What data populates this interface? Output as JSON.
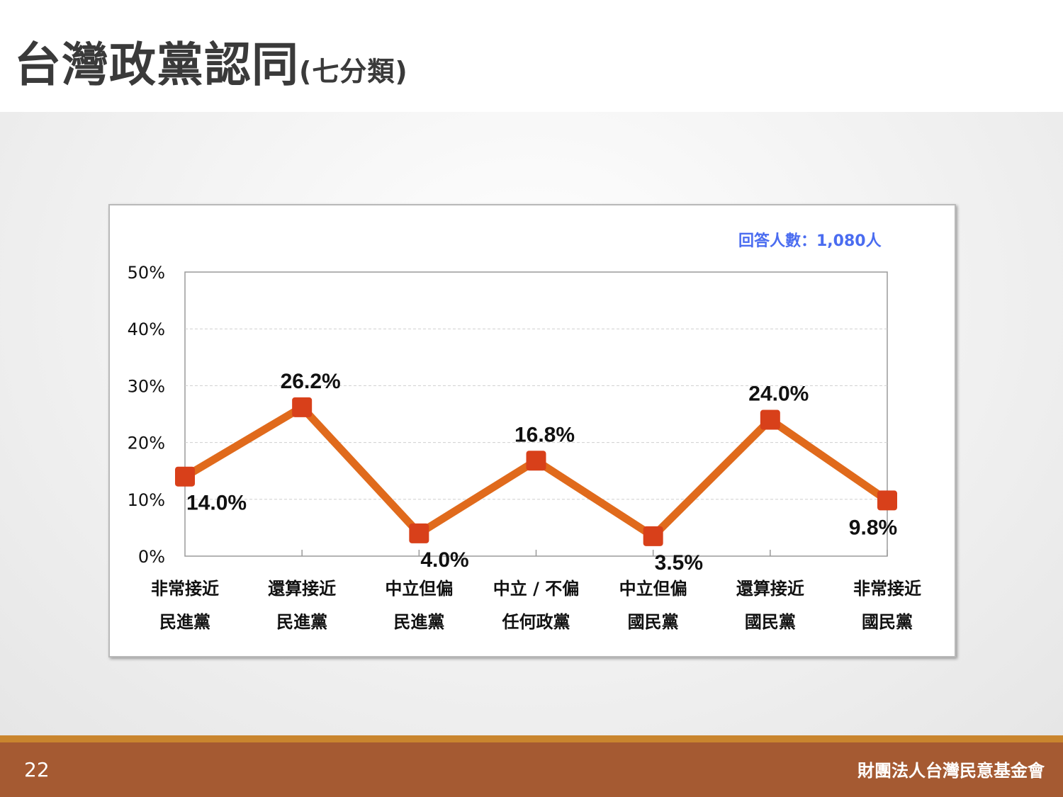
{
  "slide": {
    "title_main": "台灣政黨認同",
    "title_sub": "(七分類)",
    "page_number": "22",
    "organization": "財團法人台灣民意基金會",
    "respondents": "回答人數：1,080人"
  },
  "colors": {
    "line": "#e06a1c",
    "marker": "#d8401a",
    "footer": "#a55a32",
    "footer_line": "#c9852e",
    "note": "#4a6cf0"
  },
  "chart_data": {
    "type": "line",
    "categories": [
      [
        "非常接近",
        "民進黨"
      ],
      [
        "還算接近",
        "民進黨"
      ],
      [
        "中立但偏",
        "民進黨"
      ],
      [
        "中立 / 不偏",
        "任何政黨"
      ],
      [
        "中立但偏",
        "國民黨"
      ],
      [
        "還算接近",
        "國民黨"
      ],
      [
        "非常接近",
        "國民黨"
      ]
    ],
    "values": [
      14.0,
      26.2,
      4.0,
      16.8,
      3.5,
      24.0,
      9.8
    ],
    "data_labels": [
      "14.0%",
      "26.2%",
      "4.0%",
      "16.8%",
      "3.5%",
      "24.0%",
      "9.8%"
    ],
    "yticks": [
      "0%",
      "10%",
      "20%",
      "30%",
      "40%",
      "50%"
    ],
    "ylim": [
      0,
      50
    ],
    "grid": true,
    "legend": "none",
    "title": "",
    "xlabel": "",
    "ylabel": ""
  }
}
